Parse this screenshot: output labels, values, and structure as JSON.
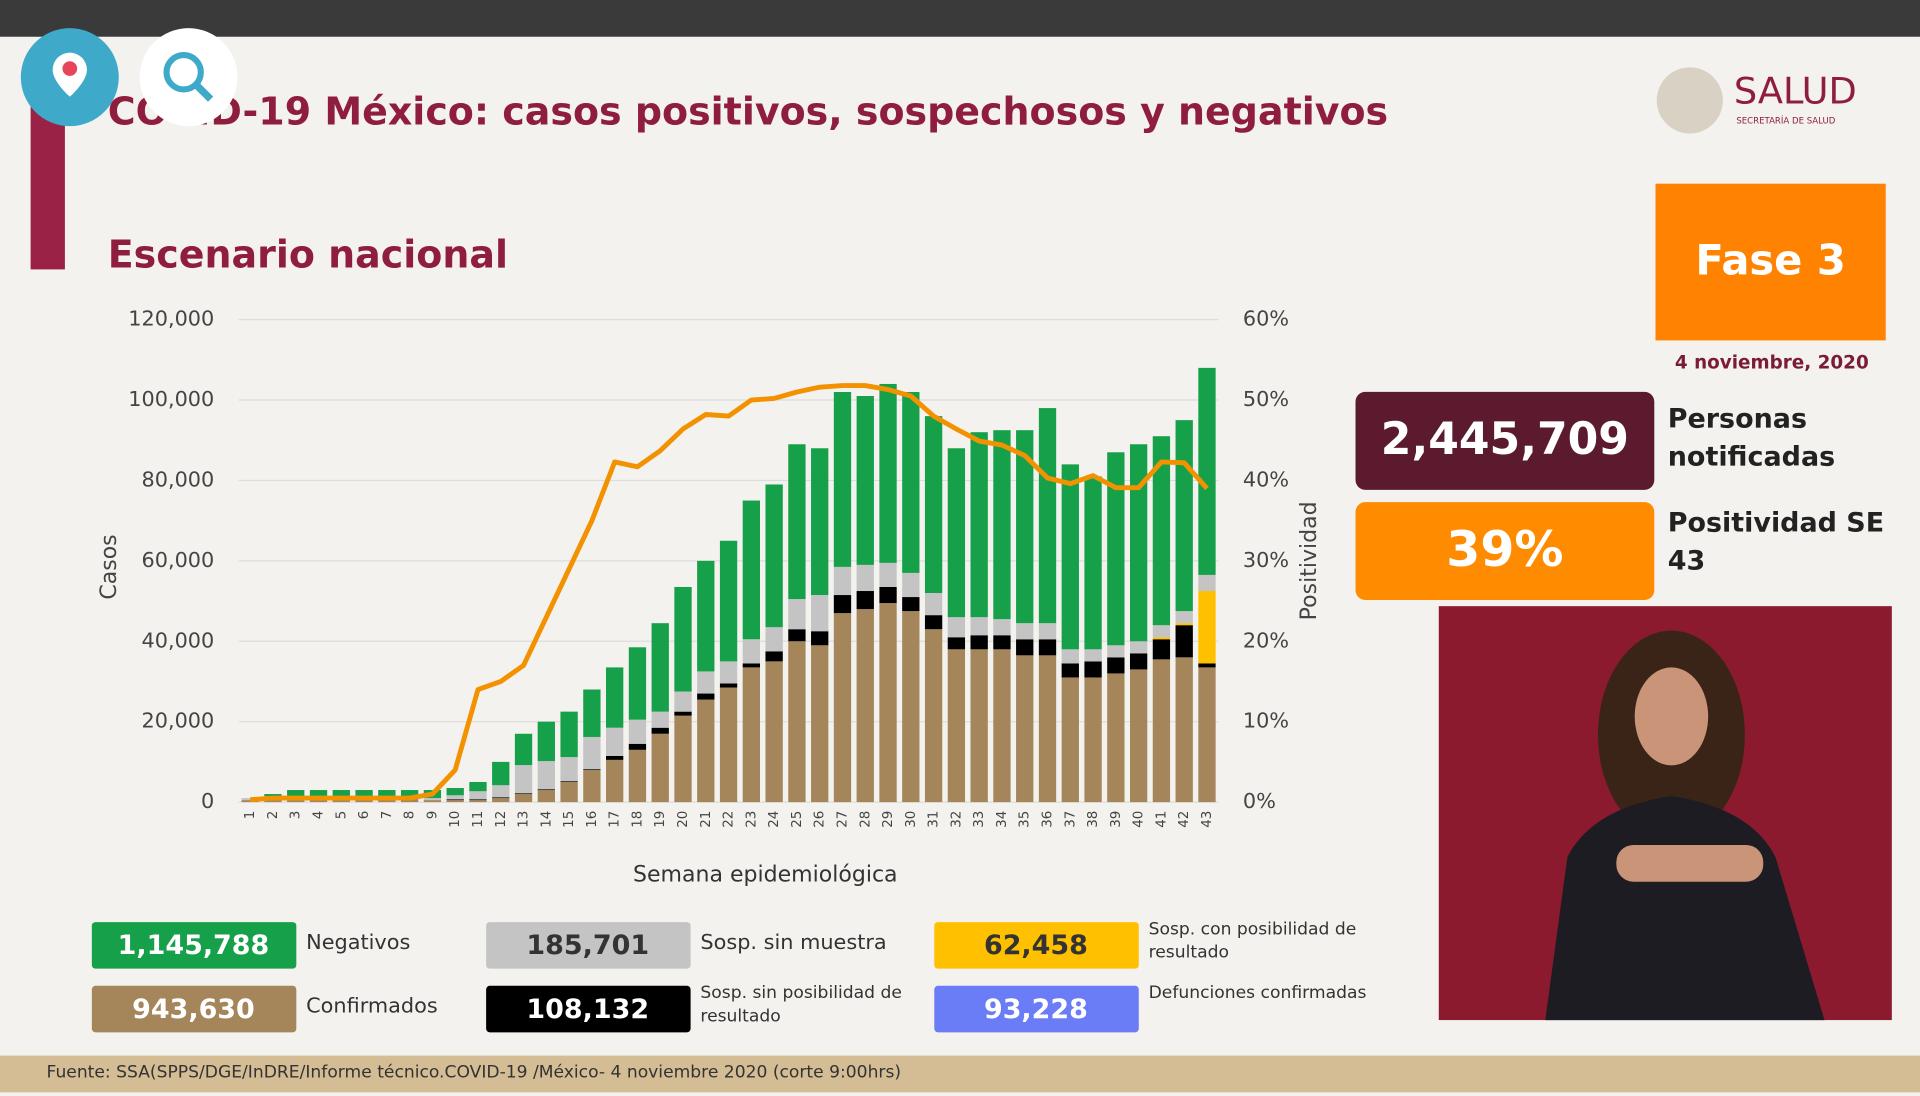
{
  "header": {
    "title": "COVID-19 México: casos positivos, sospechosos y negativos",
    "logo": "SALUD",
    "logo_sub": "SECRETARÍA DE SALUD"
  },
  "chart_data": {
    "type": "bar",
    "stacked": true,
    "title": "Escenario nacional",
    "x_label": "Semana epidemiológica",
    "y_label": "Casos",
    "y2_label": "Positividad",
    "categories": [
      "1",
      "2",
      "3",
      "4",
      "5",
      "6",
      "7",
      "8",
      "9",
      "10",
      "11",
      "12",
      "13",
      "14",
      "15",
      "16",
      "17",
      "18",
      "19",
      "20",
      "21",
      "22",
      "23",
      "24",
      "25",
      "26",
      "27",
      "28",
      "29",
      "30",
      "31",
      "32",
      "33",
      "34",
      "35",
      "36",
      "37",
      "38",
      "39",
      "40",
      "41",
      "42",
      "43"
    ],
    "ylim": [
      0,
      120000
    ],
    "yticks": [
      0,
      {
        "value": 20000,
        "label": "20,000"
      },
      {
        "value": 40000,
        "label": "40,000"
      },
      {
        "value": 60000,
        "label": "60,000"
      },
      {
        "value": 80000,
        "label": "80,000"
      },
      {
        "value": 100000,
        "label": "100,000"
      },
      {
        "value": 120000,
        "label": "120,000"
      }
    ],
    "y2lim": [
      0,
      60
    ],
    "y2ticks": [
      {
        "value": 0,
        "label": "0%"
      },
      {
        "value": 10,
        "label": "10%"
      },
      {
        "value": 20,
        "label": "20%"
      },
      {
        "value": 30,
        "label": "30%"
      },
      {
        "value": 40,
        "label": "40%"
      },
      {
        "value": 50,
        "label": "50%"
      },
      {
        "value": 60,
        "label": "60%"
      }
    ],
    "grid": true,
    "series": [
      {
        "name": "Negativos",
        "total": "1,145,788",
        "color": "#16a04a",
        "values": [
          0,
          500,
          1500,
          1500,
          1500,
          1500,
          1500,
          1500,
          2000,
          1800,
          2300,
          5800,
          7800,
          9800,
          11300,
          11800,
          15000,
          18000,
          22000,
          26000,
          27500,
          30000,
          34500,
          35500,
          38500,
          36500,
          43500,
          42000,
          44500,
          45000,
          44000,
          42000,
          46000,
          47000,
          48000,
          53500,
          46000,
          43000,
          48000,
          49000,
          47000,
          47500,
          51500
        ]
      },
      {
        "name": "Confirmados",
        "total": "943,630",
        "color": "#a5855a",
        "values": [
          500,
          1000,
          1000,
          1000,
          1000,
          1000,
          1000,
          1000,
          500,
          500,
          500,
          1000,
          2000,
          3000,
          5000,
          8000,
          10500,
          13000,
          17000,
          21500,
          25500,
          28500,
          33500,
          35000,
          40000,
          39000,
          47000,
          48000,
          49500,
          47500,
          43000,
          38000,
          38000,
          38000,
          36500,
          36500,
          31000,
          31000,
          32000,
          33000,
          35500,
          36000,
          33500
        ]
      },
      {
        "name": "Sosp. sin muestra",
        "total": "185,701",
        "color": "#c4c4c4",
        "values": [
          500,
          500,
          500,
          500,
          500,
          500,
          500,
          500,
          500,
          1000,
          2000,
          3000,
          7000,
          7000,
          6000,
          8000,
          7000,
          6000,
          4000,
          5000,
          5500,
          5500,
          6000,
          6000,
          7500,
          9000,
          7000,
          6500,
          6000,
          6000,
          5500,
          5000,
          4500,
          4000,
          4000,
          4000,
          3500,
          3000,
          3000,
          3000,
          3000,
          3000,
          4000
        ]
      },
      {
        "name": "Sosp. sin posibilidad de resultado",
        "total": "108,132",
        "color": "#000000",
        "values": [
          0,
          0,
          0,
          0,
          0,
          0,
          0,
          0,
          0,
          200,
          200,
          200,
          200,
          200,
          200,
          200,
          1000,
          1500,
          1500,
          1000,
          1500,
          1000,
          1000,
          2500,
          3000,
          3500,
          4500,
          4500,
          4000,
          3500,
          3500,
          3000,
          3500,
          3500,
          4000,
          4000,
          3500,
          4000,
          4000,
          4000,
          5000,
          8000,
          1000
        ]
      },
      {
        "name": "Sosp. con posibilidad de resultado",
        "total": "62,458",
        "color": "#ffc000",
        "values": [
          0,
          0,
          0,
          0,
          0,
          0,
          0,
          0,
          0,
          0,
          0,
          0,
          0,
          0,
          0,
          0,
          0,
          0,
          0,
          0,
          0,
          0,
          0,
          0,
          0,
          0,
          0,
          0,
          0,
          0,
          0,
          0,
          0,
          0,
          0,
          0,
          0,
          0,
          0,
          0,
          500,
          500,
          18000
        ]
      }
    ],
    "extra_legend": {
      "name": "Defunciones confirmadas",
      "total": "93,228",
      "color": "#6b7cf7"
    },
    "line": {
      "axis": "y2",
      "color": "#f39200",
      "values": [
        0.3,
        0.5,
        0.5,
        0.5,
        0.5,
        0.5,
        0.5,
        0.5,
        1,
        4,
        14,
        15,
        17,
        23,
        29,
        35,
        42.3,
        41.7,
        43.7,
        46.4,
        48.2,
        48,
        50,
        50.2,
        51,
        51.6,
        51.8,
        51.8,
        51.3,
        50.5,
        48,
        46.4,
        44.9,
        44.4,
        43.1,
        40.3,
        39.6,
        40.6,
        39.1,
        39.1,
        42.3,
        42.2,
        39
      ]
    }
  },
  "panel": {
    "phase": "Fase 3",
    "date": "4 noviembre, 2020",
    "notified": "2,445,709",
    "notified_label": "Personas notificadas",
    "positivity": "39%",
    "positivity_label": "Positividad SE 43"
  },
  "footer": "Fuente: SSA(SPPS/DGE/InDRE/Informe técnico.COVID-19 /México- 4 noviembre 2020 (corte 9:00hrs)"
}
